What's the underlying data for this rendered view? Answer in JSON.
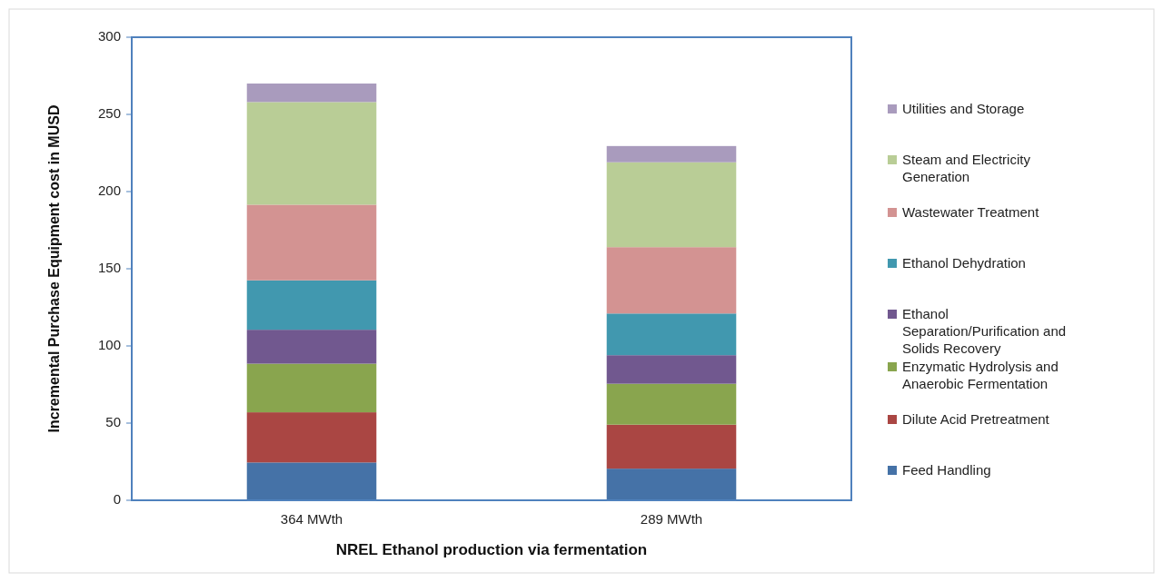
{
  "chart_data": {
    "type": "bar",
    "stacked": true,
    "xlabel": "NREL Ethanol production via fermentation",
    "ylabel": "Incremental Purchase Equipment cost in MUSD",
    "categories": [
      "364 MWth",
      "289 MWth"
    ],
    "ylim": [
      0,
      300
    ],
    "yticks": [
      0,
      50,
      100,
      150,
      200,
      250,
      300
    ],
    "grid": false,
    "legend": "right",
    "series": [
      {
        "name": "Feed Handling",
        "color": "#4572a7",
        "values": [
          24.5,
          20.5
        ]
      },
      {
        "name": "Dilute Acid Pretreatment",
        "color": "#aa4643",
        "values": [
          32.5,
          28.5
        ]
      },
      {
        "name": "Enzymatic Hydrolysis and Anaerobic Fermentation",
        "color": "#89a54e",
        "values": [
          31.5,
          26.5
        ]
      },
      {
        "name": "Ethanol Separation/Purification and Solids Recovery",
        "color": "#71588f",
        "values": [
          22,
          18.5
        ]
      },
      {
        "name": "Ethanol Dehydration",
        "color": "#4198af",
        "values": [
          32,
          27
        ]
      },
      {
        "name": "Wastewater Treatment",
        "color": "#d39392",
        "values": [
          49,
          43
        ]
      },
      {
        "name": "Steam and Electricity Generation",
        "color": "#b9cd96",
        "values": [
          66.5,
          55
        ]
      },
      {
        "name": "Utilities and Storage",
        "color": "#a99bbd",
        "values": [
          12,
          10.5
        ]
      }
    ]
  }
}
